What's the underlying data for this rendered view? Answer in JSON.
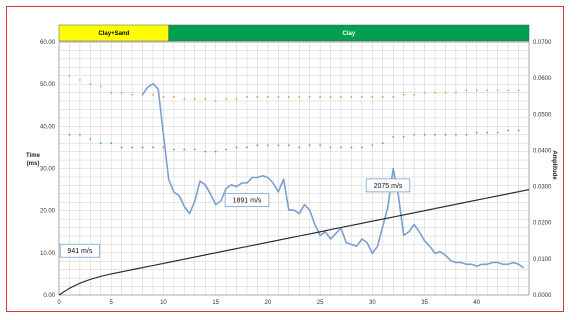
{
  "chart_data": {
    "type": "line",
    "axes": {
      "x": {
        "range": [
          0,
          45
        ],
        "ticks": [
          0,
          5,
          10,
          15,
          20,
          25,
          30,
          35,
          40
        ]
      },
      "y_left": {
        "label_lines": [
          "Time",
          "(ms)"
        ],
        "range": [
          0,
          60
        ],
        "ticks": [
          "0.00",
          "10.00",
          "20.00",
          "30.00",
          "40.00",
          "50.00",
          "60.00"
        ]
      },
      "y_right": {
        "label": "Amplitude",
        "range": [
          0,
          0.07
        ],
        "ticks": [
          "0.0000",
          "0.0100",
          "0.0200",
          "0.0300",
          "0.0400",
          "0.0500",
          "0.0600",
          "0.0700"
        ]
      },
      "grid": true
    },
    "bands": [
      {
        "label": "Clay+Sand",
        "x": [
          0,
          10.5
        ],
        "color": "#ffff00",
        "text_color": "#000000"
      },
      {
        "label": "Clay",
        "x": [
          10.5,
          45
        ],
        "color": "#00a050",
        "text_color": "#ffffff"
      }
    ],
    "annotations": [
      {
        "text": "941 m/s",
        "x": 2,
        "y": 10.5
      },
      {
        "text": "1891 m/s",
        "x": 18,
        "y": 22.5
      },
      {
        "text": "2075 m/s",
        "x": 31.5,
        "y": 26
      }
    ],
    "series": [
      {
        "axis": "left",
        "style": "points",
        "color": "#e8944a",
        "x": [
          1,
          2,
          3,
          4,
          5,
          6,
          7,
          8,
          9,
          10,
          11,
          12,
          13,
          14,
          15,
          16,
          17,
          18,
          19,
          20,
          21,
          22,
          23,
          24,
          25,
          26,
          27,
          28,
          29,
          30,
          31,
          32,
          33,
          34,
          35,
          36,
          37,
          38,
          39,
          40,
          41,
          42,
          43,
          44
        ],
        "y": [
          52,
          51,
          50,
          49.5,
          48,
          48,
          47.5,
          47.5,
          47.5,
          47,
          47,
          46.5,
          46.5,
          46.5,
          46,
          46.5,
          46.5,
          47,
          47,
          47,
          47,
          47,
          47,
          47,
          47,
          47,
          47,
          47,
          47,
          47,
          47,
          47,
          47.5,
          47.5,
          48,
          48,
          48,
          48,
          48.5,
          48.5,
          48.5,
          48.5,
          48.5,
          48.5
        ]
      },
      {
        "axis": "left",
        "style": "points",
        "color": "#4aa890",
        "x": [
          1,
          2,
          3,
          4,
          5,
          6,
          7,
          8,
          9,
          10,
          11,
          12,
          13,
          14,
          15,
          16,
          17,
          18,
          19,
          20,
          21,
          22,
          23,
          24,
          25,
          26,
          27,
          28,
          29,
          30,
          31,
          32,
          33,
          34,
          35,
          36,
          37,
          38,
          39,
          40,
          41,
          42,
          43,
          44
        ],
        "y": [
          38,
          38,
          37,
          36,
          36,
          35,
          35,
          35,
          35,
          35,
          34.5,
          34.5,
          34.5,
          34,
          34,
          34.5,
          35,
          35,
          35.5,
          35.5,
          35.5,
          35.5,
          35,
          35.5,
          35.5,
          35,
          35,
          35,
          35,
          35.5,
          36,
          37.5,
          37.5,
          38,
          38,
          38,
          38,
          38,
          38,
          38.5,
          38.5,
          38.5,
          39,
          39
        ]
      },
      {
        "axis": "right",
        "style": "line",
        "color": "#7aa0d0",
        "x": [
          8,
          8.5,
          9,
          9.5,
          10,
          10.5,
          11,
          11.5,
          12,
          12.5,
          13,
          13.5,
          14,
          14.5,
          15,
          15.5,
          16,
          16.5,
          17,
          17.5,
          18,
          18.5,
          19,
          19.5,
          20,
          20.5,
          21,
          21.5,
          22,
          22.5,
          23,
          23.5,
          24,
          24.5,
          25,
          25.5,
          26,
          26.5,
          27,
          27.5,
          28,
          28.5,
          29,
          29.5,
          30,
          30.5,
          31,
          31.5,
          32,
          32.5,
          33,
          33.5,
          34,
          34.5,
          35,
          35.5,
          36,
          36.5,
          37,
          37.5,
          38,
          38.5,
          39,
          39.5,
          40,
          40.5,
          41,
          41.5,
          42,
          42.5,
          43,
          43.5,
          44,
          44.5
        ],
        "y": [
          0.0555,
          0.0575,
          0.0585,
          0.057,
          0.0445,
          0.032,
          0.0285,
          0.0275,
          0.0245,
          0.0225,
          0.026,
          0.0315,
          0.0305,
          0.028,
          0.025,
          0.026,
          0.0295,
          0.0305,
          0.03,
          0.031,
          0.031,
          0.0325,
          0.0325,
          0.033,
          0.0325,
          0.031,
          0.0285,
          0.032,
          0.0235,
          0.0235,
          0.0225,
          0.025,
          0.0235,
          0.0195,
          0.0165,
          0.0175,
          0.0155,
          0.017,
          0.0185,
          0.0145,
          0.014,
          0.0135,
          0.0155,
          0.0145,
          0.0115,
          0.0135,
          0.019,
          0.0245,
          0.035,
          0.0275,
          0.0165,
          0.0175,
          0.0195,
          0.0175,
          0.015,
          0.0135,
          0.0115,
          0.012,
          0.011,
          0.0095,
          0.009,
          0.009,
          0.0085,
          0.0085,
          0.008,
          0.0085,
          0.0085,
          0.009,
          0.009,
          0.0085,
          0.0085,
          0.009,
          0.0085,
          0.0075
        ]
      },
      {
        "axis": "left",
        "style": "line",
        "color": "#222222",
        "x": [
          0,
          1,
          2,
          3,
          4,
          5,
          6,
          7,
          8,
          9,
          10,
          11,
          12,
          13,
          14,
          15,
          16,
          17,
          18,
          19,
          20,
          21,
          22,
          23,
          24,
          25,
          26,
          27,
          28,
          29,
          30,
          31,
          32,
          33,
          34,
          35,
          36,
          37,
          38,
          39,
          40,
          41,
          42,
          43,
          44,
          45
        ],
        "y": [
          0,
          1.6,
          2.8,
          3.7,
          4.4,
          5,
          5.5,
          6,
          6.5,
          7,
          7.5,
          8,
          8.5,
          9,
          9.5,
          10,
          10.5,
          11,
          11.5,
          12,
          12.5,
          13,
          13.5,
          14,
          14.5,
          15,
          15.5,
          16,
          16.5,
          17,
          17.5,
          18,
          18.5,
          19,
          19.5,
          20,
          20.5,
          21,
          21.5,
          22,
          22.5,
          23,
          23.5,
          24,
          24.5,
          25
        ]
      },
      {
        "axis": "left",
        "style": "points",
        "color": "#555555",
        "x": [
          2,
          4,
          6,
          8,
          10,
          12,
          14,
          16,
          18,
          20,
          22,
          24,
          26,
          28,
          30,
          32,
          34,
          36,
          38,
          40,
          42,
          44
        ],
        "y": [
          2.8,
          4.4,
          5.5,
          6.5,
          7.5,
          8.5,
          9.5,
          10.5,
          11.5,
          12.5,
          13.5,
          14.5,
          15.5,
          16.5,
          17.5,
          18.5,
          19.5,
          20.5,
          21.5,
          22.5,
          23.5,
          24.5
        ]
      }
    ]
  }
}
